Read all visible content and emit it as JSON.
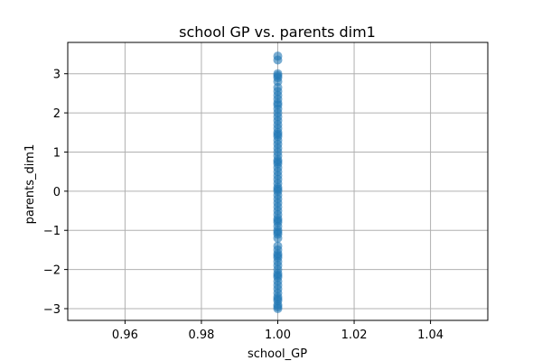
{
  "chart_data": {
    "type": "scatter",
    "title": "school GP vs. parents dim1",
    "xlabel": "school_GP",
    "ylabel": "parents_dim1",
    "xlim": [
      0.945,
      1.055
    ],
    "ylim": [
      -3.3,
      3.8
    ],
    "xticks": [
      "0.96",
      "0.98",
      "1.00",
      "1.02",
      "1.04"
    ],
    "yticks": [
      "-3",
      "-2",
      "-1",
      "0",
      "1",
      "2",
      "3"
    ],
    "grid": true,
    "series": [
      {
        "color": "#1f77b4",
        "x": [
          1,
          1,
          1,
          1,
          1,
          1,
          1,
          1,
          1,
          1,
          1,
          1,
          1,
          1,
          1,
          1,
          1,
          1,
          1,
          1,
          1,
          1,
          1,
          1,
          1,
          1,
          1,
          1,
          1,
          1,
          1,
          1,
          1,
          1,
          1,
          1,
          1,
          1,
          1,
          1,
          1,
          1,
          1,
          1,
          1,
          1,
          1,
          1,
          1,
          1,
          1,
          1,
          1,
          1,
          1,
          1,
          1,
          1,
          1,
          1,
          1,
          1,
          1,
          1,
          1,
          1,
          1,
          1,
          1,
          1,
          1,
          1
        ],
        "y": [
          3.45,
          3.35,
          3.0,
          2.95,
          2.8,
          2.65,
          2.55,
          2.45,
          2.35,
          2.2,
          2.1,
          2.0,
          1.9,
          1.8,
          1.7,
          1.6,
          1.5,
          1.4,
          1.3,
          1.2,
          1.1,
          1.0,
          0.9,
          0.8,
          0.7,
          0.6,
          0.5,
          0.4,
          0.3,
          0.2,
          0.1,
          0.0,
          -0.1,
          -0.2,
          -0.3,
          -0.4,
          -0.5,
          -0.6,
          -0.7,
          -0.8,
          -0.9,
          -1.0,
          -1.05,
          -1.1,
          -1.2,
          -1.4,
          -1.5,
          -1.6,
          -1.7,
          -1.8,
          -1.9,
          -2.0,
          -2.1,
          -2.2,
          -2.3,
          -2.4,
          -2.5,
          -2.6,
          -2.7,
          -2.8,
          -2.9,
          -3.0,
          -2.95,
          -2.75,
          -2.15,
          -1.65,
          -0.75,
          0.05,
          0.75,
          1.45,
          2.25,
          2.9
        ]
      }
    ]
  }
}
